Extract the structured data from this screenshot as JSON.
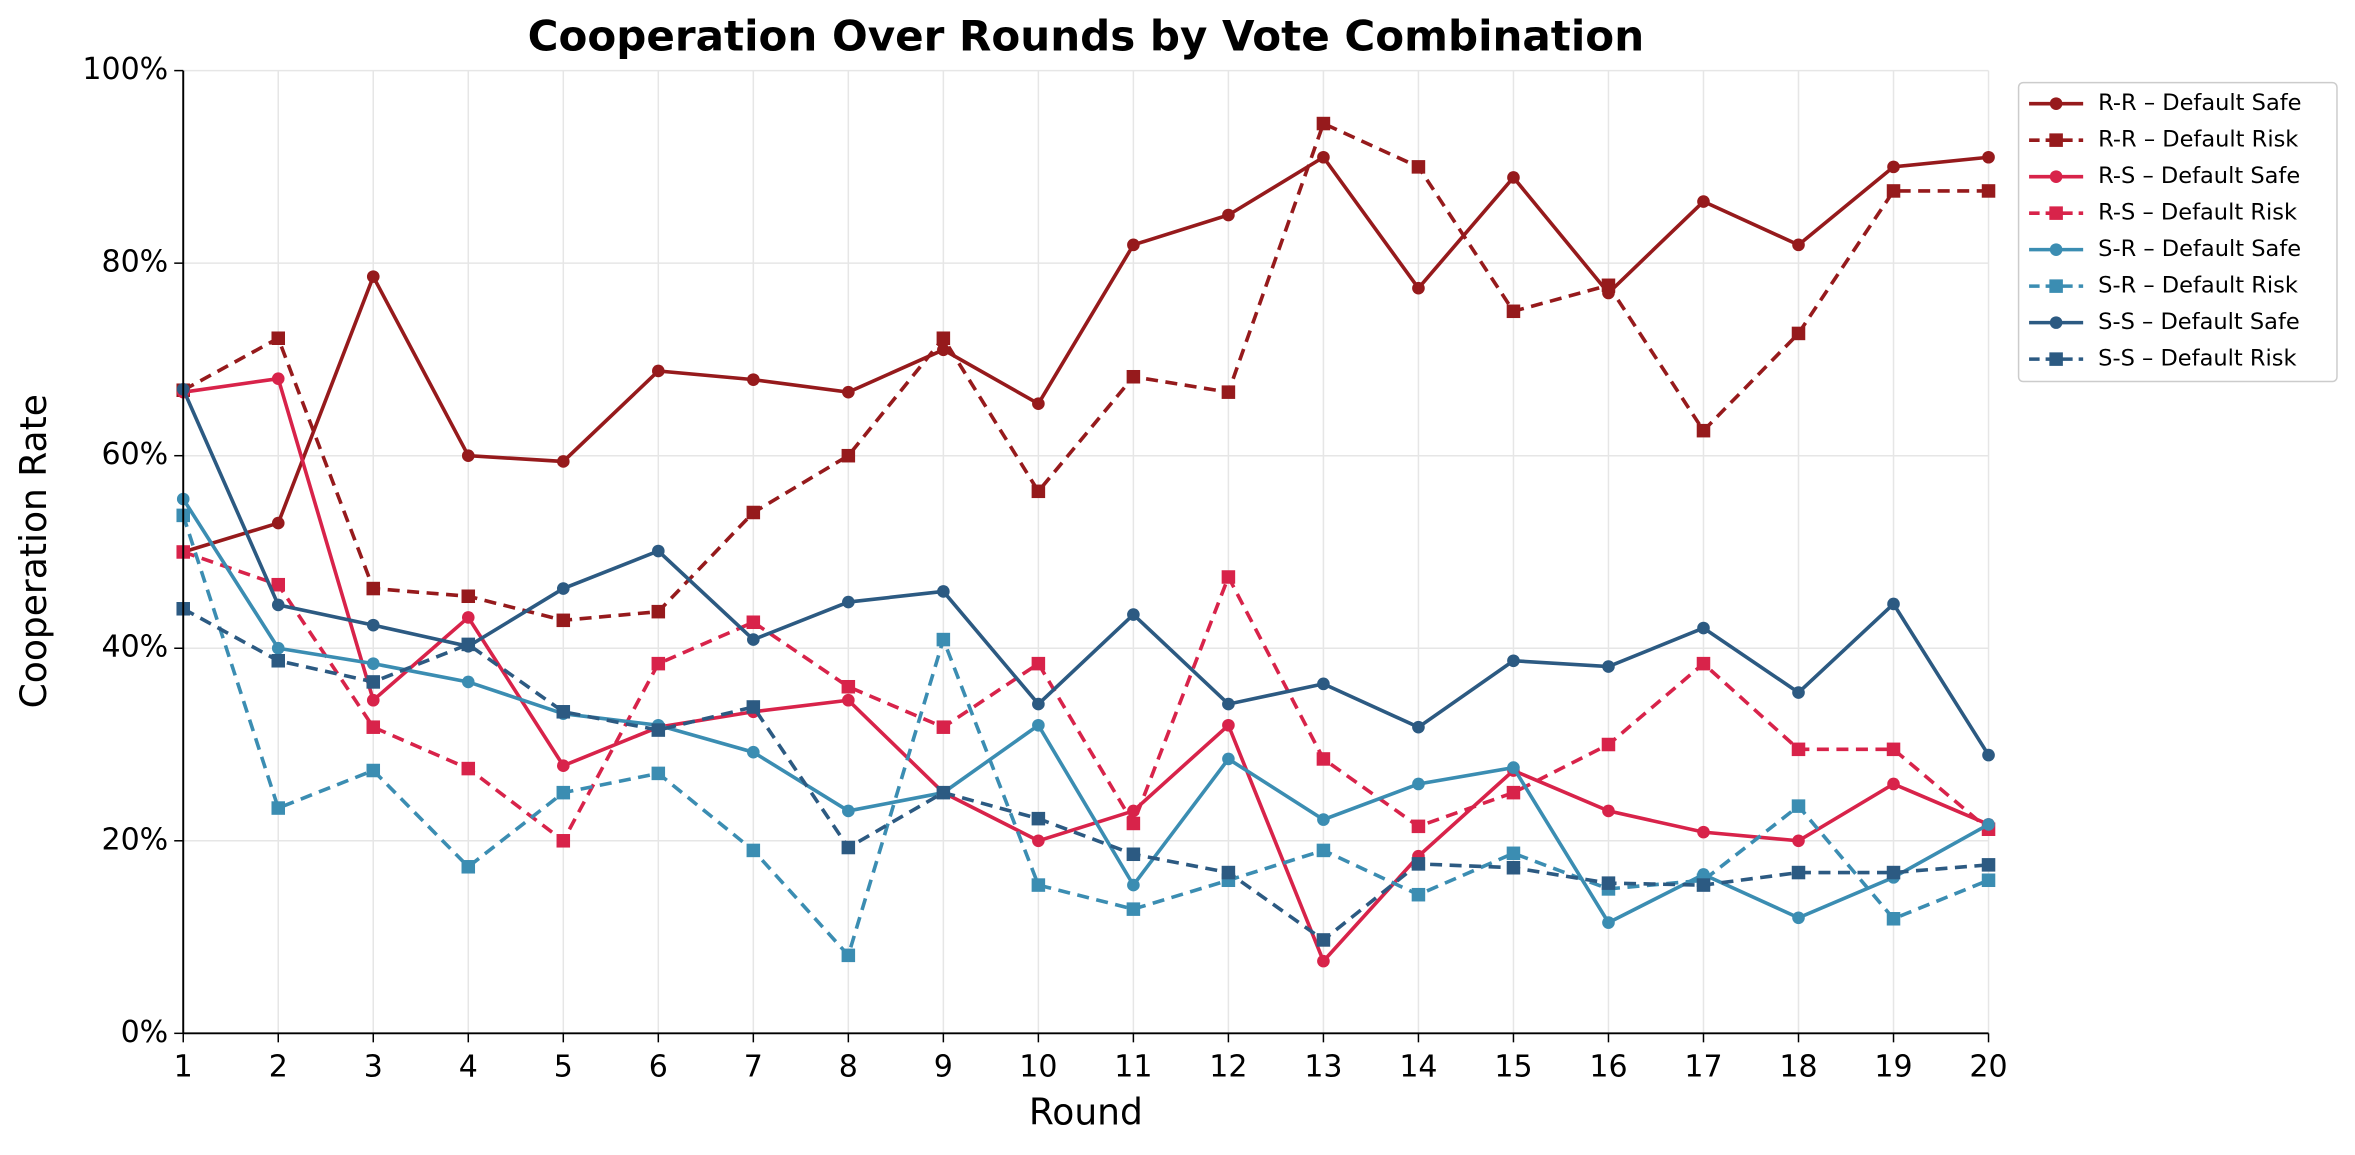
{
  "chart_data": {
    "type": "line",
    "title": "Cooperation Over Rounds by Vote Combination",
    "x_label": "Round",
    "y_label": "Cooperation Rate",
    "x": [
      1,
      2,
      3,
      4,
      5,
      6,
      7,
      8,
      9,
      10,
      11,
      12,
      13,
      14,
      15,
      16,
      17,
      18,
      19,
      20
    ],
    "xlim": [
      1,
      20
    ],
    "xticks": [
      1,
      2,
      3,
      4,
      5,
      6,
      7,
      8,
      9,
      10,
      11,
      12,
      13,
      14,
      15,
      16,
      17,
      18,
      19,
      20
    ],
    "ylim": [
      0,
      100
    ],
    "yticks": [
      {
        "value": 0,
        "label": "0%"
      },
      {
        "value": 20,
        "label": "20%"
      },
      {
        "value": 40,
        "label": "40%"
      },
      {
        "value": 60,
        "label": "60%"
      },
      {
        "value": 80,
        "label": "80%"
      },
      {
        "value": 100,
        "label": "100%"
      }
    ],
    "grid": true,
    "legend": "outside upper right",
    "series": [
      {
        "name": "R-R – Default Safe",
        "color": "#961a1c",
        "dashed": false,
        "marker": "circle",
        "values": [
          50,
          53,
          78.6,
          60,
          59.4,
          68.8,
          67.9,
          66.6,
          71,
          65.4,
          81.9,
          85,
          91,
          77.4,
          88.9,
          76.9,
          86.4,
          81.9,
          90,
          91
        ]
      },
      {
        "name": "R-R – Default Risk",
        "color": "#961a1c",
        "dashed": true,
        "marker": "square",
        "values": [
          66.8,
          72.2,
          46.2,
          45.4,
          42.9,
          43.8,
          54.1,
          60,
          72.2,
          56.3,
          68.2,
          66.6,
          94.5,
          90,
          75,
          77.7,
          62.6,
          72.7,
          87.5,
          87.5
        ]
      },
      {
        "name": "R-S – Default Safe",
        "color": "#d8234a",
        "dashed": false,
        "marker": "circle",
        "values": [
          66.6,
          68,
          34.6,
          43.2,
          27.8,
          31.8,
          33.4,
          34.6,
          25,
          20,
          23.1,
          32,
          7.5,
          18.4,
          27.3,
          23.1,
          20.9,
          20,
          25.9,
          21.7
        ]
      },
      {
        "name": "R-S – Default Risk",
        "color": "#d8234a",
        "dashed": true,
        "marker": "square",
        "values": [
          50,
          46.6,
          31.8,
          27.5,
          20,
          38.4,
          42.7,
          36,
          31.8,
          38.4,
          21.8,
          47.4,
          28.5,
          21.5,
          25,
          30,
          38.4,
          29.5,
          29.5,
          21.2
        ]
      },
      {
        "name": "S-R – Default Safe",
        "color": "#3b8db2",
        "dashed": false,
        "marker": "circle",
        "values": [
          55.5,
          40,
          38.4,
          36.5,
          33.2,
          32,
          29.2,
          23.1,
          25,
          32,
          15.4,
          28.5,
          22.2,
          25.9,
          27.6,
          11.5,
          16.5,
          12,
          16.2,
          21.7
        ]
      },
      {
        "name": "S-R – Default Risk",
        "color": "#3b8db2",
        "dashed": true,
        "marker": "square",
        "values": [
          53.8,
          23.4,
          27.3,
          17.3,
          25,
          27,
          19,
          8.1,
          40.9,
          15.4,
          12.9,
          15.9,
          19,
          14.4,
          18.7,
          15,
          15.9,
          23.6,
          11.9,
          15.9
        ]
      },
      {
        "name": "S-S – Default Safe",
        "color": "#2c5a82",
        "dashed": false,
        "marker": "circle",
        "values": [
          66.9,
          44.5,
          42.4,
          40.2,
          46.2,
          50.1,
          40.9,
          44.8,
          45.9,
          34.2,
          43.5,
          34.2,
          36.3,
          31.8,
          38.7,
          38.1,
          42.1,
          35.4,
          44.6,
          28.9
        ]
      },
      {
        "name": "S-S – Default Risk",
        "color": "#2c5a82",
        "dashed": true,
        "marker": "square",
        "values": [
          44.1,
          38.7,
          36.5,
          40.4,
          33.4,
          31.5,
          33.9,
          19.3,
          25,
          22.3,
          18.6,
          16.7,
          9.7,
          17.6,
          17.2,
          15.6,
          15.4,
          16.7,
          16.7,
          17.5
        ]
      }
    ]
  }
}
